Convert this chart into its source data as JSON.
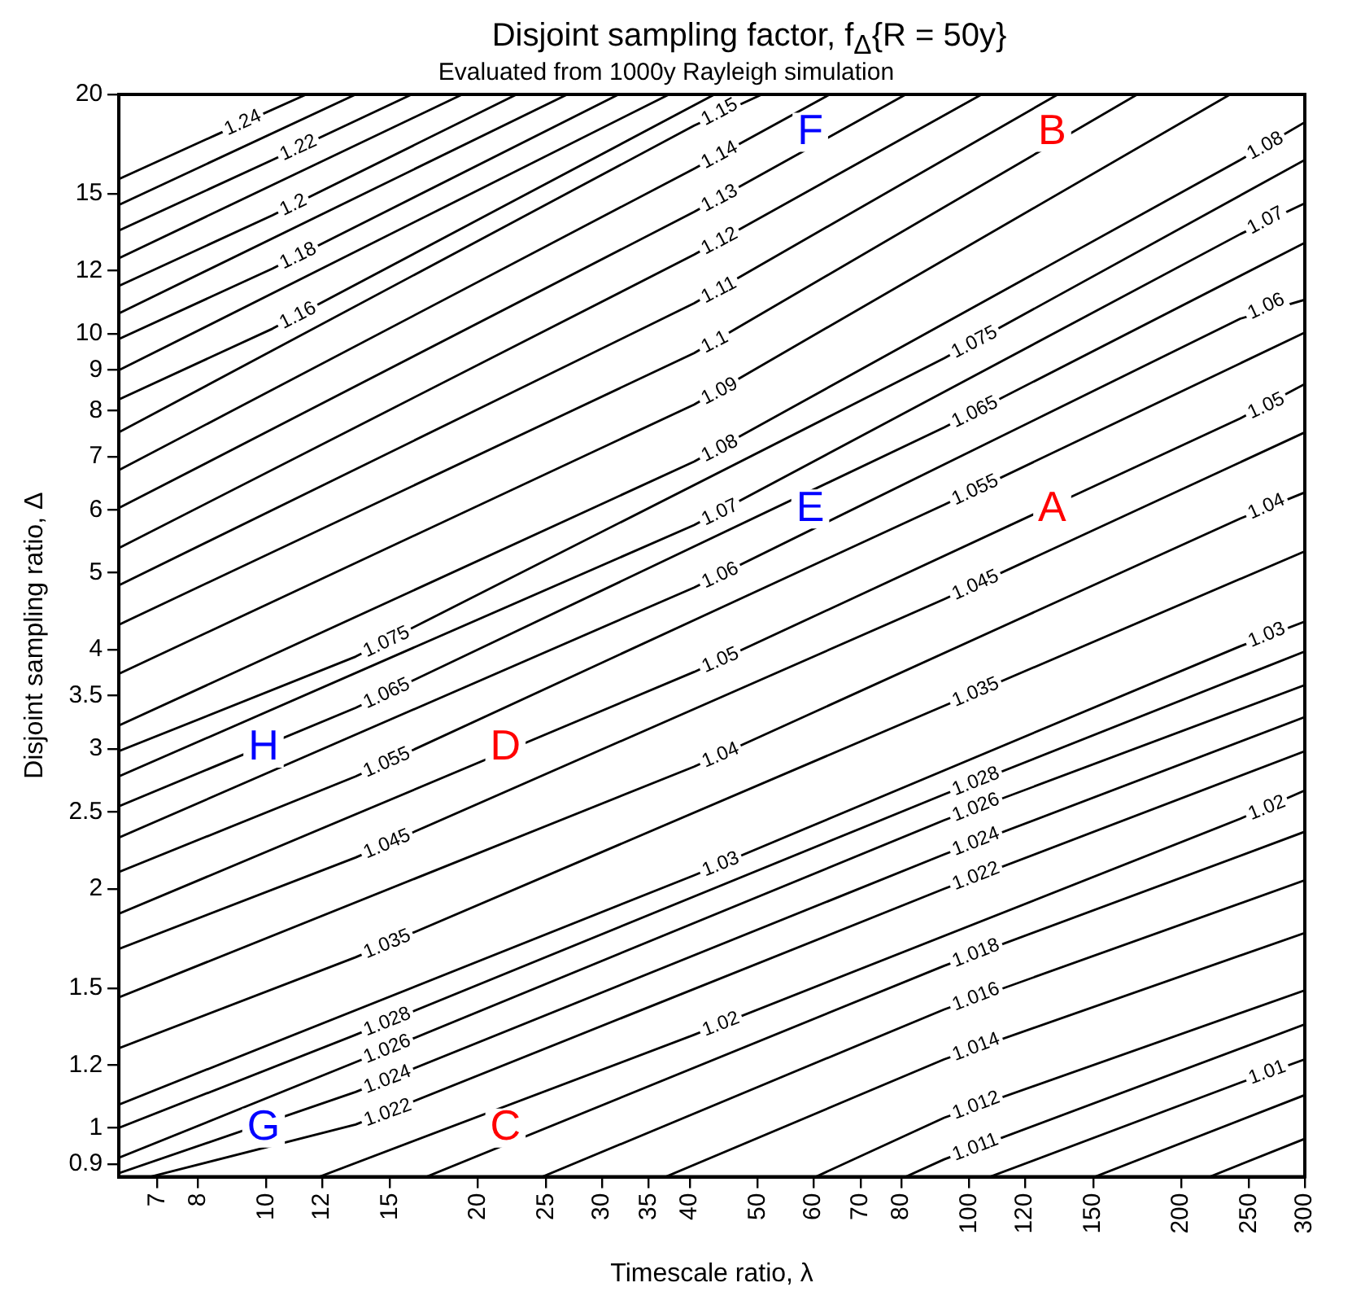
{
  "chart_data": {
    "type": "line",
    "title": "Disjoint sampling factor, f$_{Δ}${R = 50y}",
    "subtitle": "Evaluated from 1000y Rayleigh simulation",
    "xlabel": "Timescale ratio, λ",
    "ylabel": "Disjoint sampling ratio, Δ",
    "log": "xy",
    "grid": false,
    "legend": false,
    "marker": "none",
    "xlim": [
      6.17,
      300
    ],
    "ylim": [
      0.868,
      20
    ],
    "xticks": [
      7,
      8,
      10,
      12,
      15,
      20,
      25,
      30,
      35,
      40,
      50,
      60,
      70,
      80,
      100,
      120,
      150,
      200,
      250,
      300
    ],
    "yticks": [
      0.9,
      1,
      1.2,
      1.5,
      2,
      2.5,
      3,
      3.5,
      4,
      5,
      6,
      7,
      8,
      9,
      10,
      12,
      15,
      20
    ],
    "series": [
      {
        "name": "1.24",
        "color": "#000000",
        "x": [
          6.17,
          8.5,
          11.4
        ],
        "values": [
          15.65,
          17.8,
          20
        ]
      },
      {
        "color": "#000000",
        "x": [
          6.17,
          13.4
        ],
        "values": [
          14.52,
          20
        ]
      },
      {
        "name": "1.22",
        "color": "#000000",
        "x": [
          6.17,
          10.2,
          16.1
        ],
        "values": [
          13.48,
          16.54,
          20
        ]
      },
      {
        "color": "#000000",
        "x": [
          6.17,
          19.0
        ],
        "values": [
          12.44,
          20
        ]
      },
      {
        "name": "1.2",
        "color": "#000000",
        "x": [
          6.17,
          10.2,
          22.7
        ],
        "values": [
          11.48,
          14.09,
          20
        ]
      },
      {
        "color": "#000000",
        "x": [
          6.17,
          26.8
        ],
        "values": [
          10.6,
          20
        ]
      },
      {
        "name": "1.18",
        "color": "#000000",
        "x": [
          6.17,
          10.2,
          31.7
        ],
        "values": [
          9.84,
          12.07,
          20
        ]
      },
      {
        "color": "#000000",
        "x": [
          6.17,
          37.4
        ],
        "values": [
          8.99,
          20
        ]
      },
      {
        "name": "1.16",
        "color": "#000000",
        "x": [
          6.17,
          10.2,
          43.4
        ],
        "values": [
          8.26,
          10.14,
          20
        ]
      },
      {
        "name": "1.15",
        "color": "#000000",
        "x": [
          6.17,
          40.6,
          50.7
        ],
        "values": [
          7.51,
          18.27,
          20
        ]
      },
      {
        "name": "1.14",
        "color": "#000000",
        "x": [
          6.17,
          40.6,
          63.3
        ],
        "values": [
          6.73,
          16.13,
          20
        ]
      },
      {
        "name": "1.13",
        "color": "#000000",
        "x": [
          6.17,
          40.6,
          81.2
        ],
        "values": [
          6.03,
          14.23,
          20
        ]
      },
      {
        "name": "1.12",
        "color": "#000000",
        "x": [
          6.17,
          40.6,
          104.1
        ],
        "values": [
          5.37,
          12.57,
          20
        ]
      },
      {
        "name": "1.11",
        "color": "#000000",
        "x": [
          6.17,
          40.6,
          133.6
        ],
        "values": [
          4.82,
          10.92,
          20
        ]
      },
      {
        "name": "1.1",
        "color": "#000000",
        "x": [
          6.17,
          40.6,
          173.3
        ],
        "values": [
          4.3,
          9.45,
          20
        ]
      },
      {
        "name": "1.09",
        "color": "#000000",
        "x": [
          6.17,
          40.6,
          234.9
        ],
        "values": [
          3.73,
          8.14,
          20
        ]
      },
      {
        "name": "1.08",
        "color": "#000000",
        "x": [
          6.17,
          40.6,
          242.8,
          300
        ],
        "values": [
          3.21,
          6.9,
          16.54,
          18.45
        ]
      },
      {
        "name": "1.075",
        "color": "#000000",
        "x": [
          6.17,
          13.4,
          92.1,
          300
        ],
        "values": [
          2.98,
          3.92,
          9.31,
          16.54
        ]
      },
      {
        "name": "1.07",
        "color": "#000000",
        "x": [
          6.17,
          40.6,
          242.8,
          300
        ],
        "values": [
          2.77,
          5.74,
          13.34,
          14.59
        ]
      },
      {
        "name": "1.065",
        "color": "#000000",
        "x": [
          6.17,
          13.4,
          92.1,
          300
        ],
        "values": [
          2.54,
          3.38,
          7.62,
          13.01
        ]
      },
      {
        "name": "1.06",
        "color": "#000000",
        "x": [
          6.17,
          40.6,
          242.8,
          300
        ],
        "values": [
          2.32,
          4.79,
          10.44,
          11.03
        ]
      },
      {
        "name": "1.055",
        "color": "#000000",
        "x": [
          6.17,
          13.4,
          92.1,
          300
        ],
        "values": [
          2.1,
          2.77,
          6.09,
          10.03
        ]
      },
      {
        "name": "1.05",
        "color": "#000000",
        "x": [
          6.17,
          40.6,
          242.8,
          300
        ],
        "values": [
          1.86,
          3.75,
          7.82,
          8.64
        ]
      },
      {
        "name": "1.045",
        "color": "#000000",
        "x": [
          6.17,
          13.4,
          92.1,
          300
        ],
        "values": [
          1.68,
          2.19,
          4.63,
          7.51
        ]
      },
      {
        "name": "1.04",
        "color": "#000000",
        "x": [
          6.17,
          40.6,
          242.8,
          300
        ],
        "values": [
          1.46,
          2.85,
          5.85,
          6.31
        ]
      },
      {
        "name": "1.035",
        "color": "#000000",
        "x": [
          6.17,
          13.4,
          92.1,
          300
        ],
        "values": [
          1.26,
          1.64,
          3.4,
          5.32
        ]
      },
      {
        "name": "1.03",
        "color": "#000000",
        "x": [
          6.17,
          40.6,
          242.8,
          300
        ],
        "values": [
          1.07,
          2.08,
          4.04,
          4.34
        ]
      },
      {
        "name": "1.028",
        "color": "#000000",
        "x": [
          6.17,
          13.4,
          92.1,
          300
        ],
        "values": [
          1.0,
          1.31,
          2.63,
          3.98
        ]
      },
      {
        "name": "1.026",
        "color": "#000000",
        "x": [
          6.17,
          13.4,
          92.1,
          300
        ],
        "values": [
          0.917,
          1.21,
          2.44,
          3.61
        ]
      },
      {
        "name": "1.024",
        "color": "#000000",
        "x": [
          6.17,
          13.4,
          92.1,
          300
        ],
        "values": [
          0.877,
          1.11,
          2.21,
          3.29
        ]
      },
      {
        "name": "1.022",
        "color": "#000000",
        "x": [
          6.84,
          13.4,
          92.1,
          300
        ],
        "values": [
          0.868,
          1.01,
          2.0,
          2.98
        ]
      },
      {
        "name": "1.02",
        "color": "#000000",
        "x": [
          11.9,
          40.6,
          242.8,
          300
        ],
        "values": [
          0.868,
          1.31,
          2.45,
          2.66
        ]
      },
      {
        "name": "1.018",
        "color": "#000000",
        "x": [
          16.9,
          92.1,
          300
        ],
        "values": [
          0.868,
          1.6,
          2.36
        ]
      },
      {
        "name": "1.016",
        "color": "#000000",
        "x": [
          24.7,
          92.1,
          300
        ],
        "values": [
          0.868,
          1.41,
          2.05
        ]
      },
      {
        "name": "1.014",
        "color": "#000000",
        "x": [
          37.0,
          92.1,
          300
        ],
        "values": [
          0.868,
          1.22,
          1.76
        ]
      },
      {
        "name": "1.012",
        "color": "#000000",
        "x": [
          60.5,
          92.1,
          300
        ],
        "values": [
          0.868,
          1.03,
          1.49
        ]
      },
      {
        "name": "1.011",
        "color": "#000000",
        "x": [
          81.2,
          92.1,
          300
        ],
        "values": [
          0.868,
          0.913,
          1.35
        ]
      },
      {
        "name": "1.01",
        "color": "#000000",
        "x": [
          107.0,
          242.8,
          300
        ],
        "values": [
          0.868,
          1.14,
          1.22
        ]
      },
      {
        "color": "#000000",
        "x": [
          150.9,
          300
        ],
        "values": [
          0.868,
          1.1
        ]
      },
      {
        "color": "#000000",
        "x": [
          219.8,
          300
        ],
        "values": [
          0.868,
          0.969
        ]
      }
    ],
    "annotations": [
      "A",
      "B",
      "C",
      "D",
      "E",
      "F",
      "G",
      "H"
    ]
  }
}
